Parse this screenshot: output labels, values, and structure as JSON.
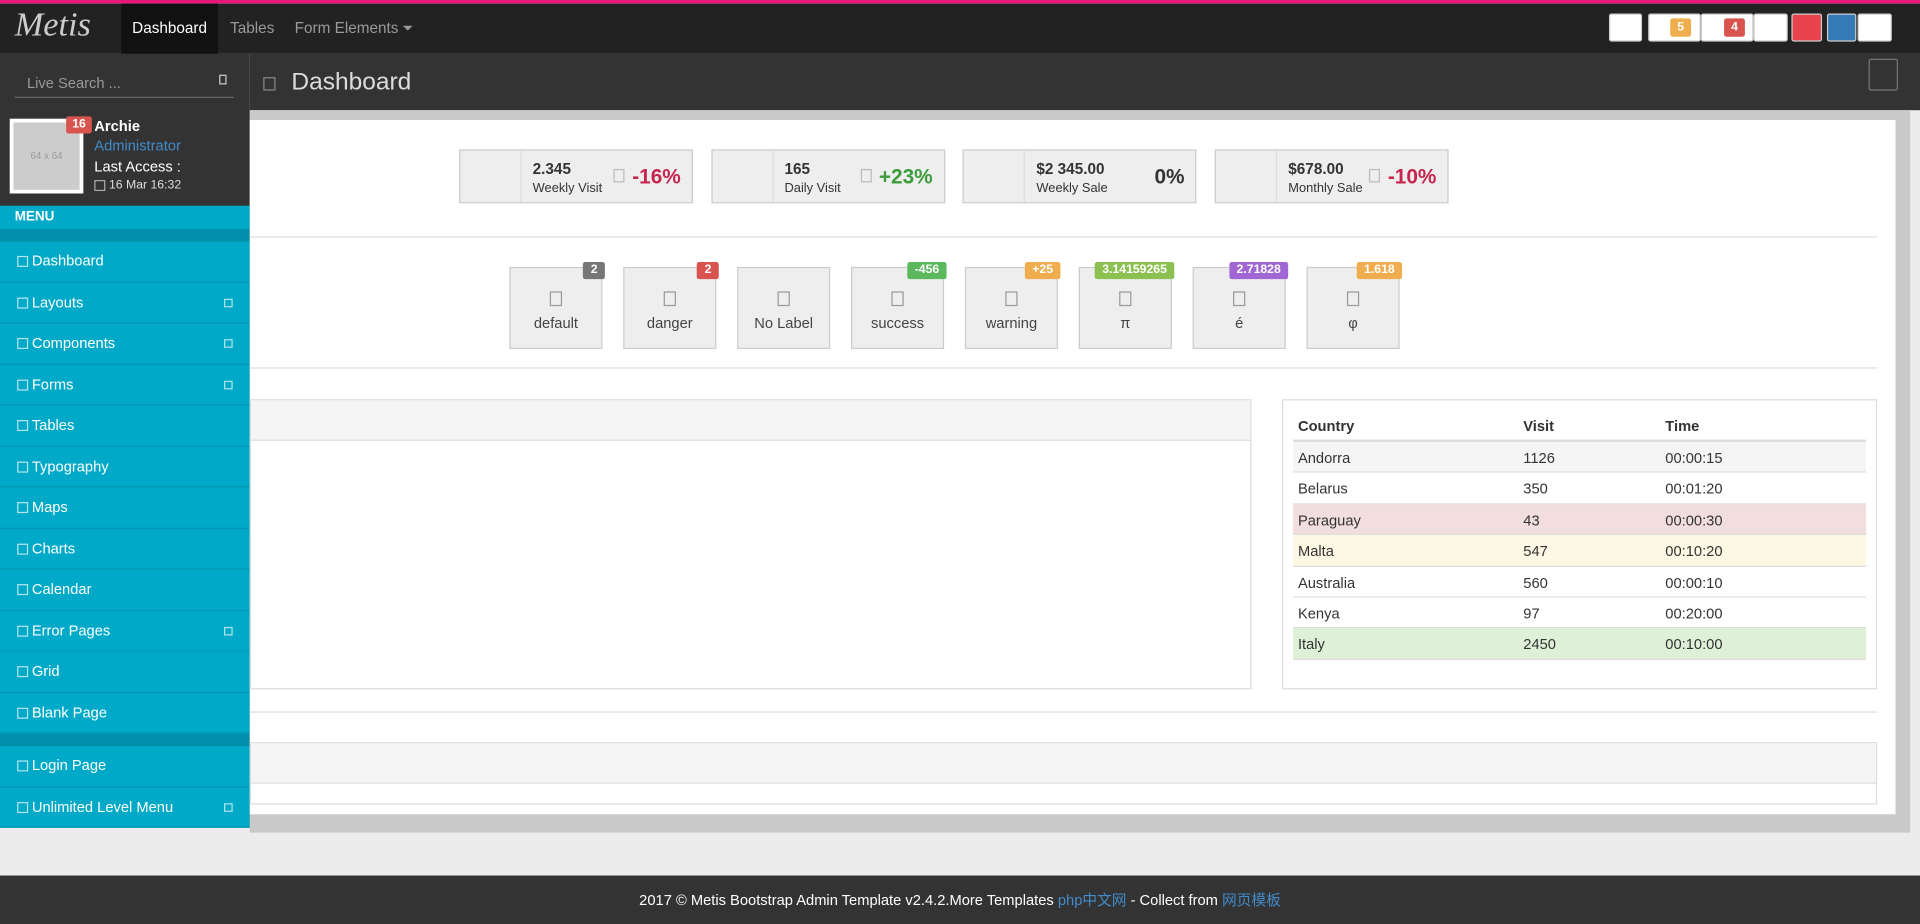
{
  "navbar": {
    "brand": "Metis",
    "links": [
      "Dashboard",
      "Tables",
      "Form Elements"
    ],
    "badges": [
      "5",
      "4"
    ]
  },
  "sidebar": {
    "search_placeholder": "Live Search ...",
    "user": {
      "avatar": "64 x 64",
      "badge": "16",
      "name": "Archie",
      "role": "Administrator",
      "last_access_label": "Last Access :",
      "last_access": "16 Mar 16:32"
    },
    "menu_header": "MENU",
    "menu": [
      {
        "label": "Dashboard",
        "submenu": false
      },
      {
        "label": "Layouts",
        "submenu": true
      },
      {
        "label": "Components",
        "submenu": true
      },
      {
        "label": "Forms",
        "submenu": true
      },
      {
        "label": "Tables",
        "submenu": false
      },
      {
        "label": "Typography",
        "submenu": false
      },
      {
        "label": "Maps",
        "submenu": false
      },
      {
        "label": "Charts",
        "submenu": false
      },
      {
        "label": "Calendar",
        "submenu": false
      },
      {
        "label": "Error Pages",
        "submenu": true
      },
      {
        "label": "Grid",
        "submenu": false
      },
      {
        "label": "Blank Page",
        "submenu": false
      }
    ],
    "menu_extra": [
      {
        "label": "Login Page",
        "submenu": false
      },
      {
        "label": "Unlimited Level Menu",
        "submenu": true
      }
    ]
  },
  "header": {
    "title": "Dashboard"
  },
  "stats": [
    {
      "value": "2.345",
      "label": "Weekly Visit",
      "change": "-16%"
    },
    {
      "value": "165",
      "label": "Daily Visit",
      "change": "+23%"
    },
    {
      "value": "$2 345.00",
      "label": "Weekly Sale",
      "change": "0%"
    },
    {
      "value": "$678.00",
      "label": "Monthly Sale",
      "change": "-10%"
    }
  ],
  "quick_buttons": [
    {
      "label": "default",
      "badge": "2",
      "color": "#777777"
    },
    {
      "label": "danger",
      "badge": "2",
      "color": "#d9534f"
    },
    {
      "label": "No Label"
    },
    {
      "label": "success",
      "badge": "-456",
      "color": "#5cb85c"
    },
    {
      "label": "warning",
      "badge": "+25",
      "color": "#f0ad4e"
    },
    {
      "label": "π",
      "badge": "3.14159265",
      "color": "#8cc152"
    },
    {
      "label": "é",
      "badge": "2.71828",
      "color": "#a066d3"
    },
    {
      "label": "φ",
      "badge": "1.618",
      "color": "#f0ad4e"
    }
  ],
  "table": {
    "columns": [
      "Country",
      "Visit",
      "Time"
    ],
    "rows": [
      [
        "Andorra",
        "1126",
        "00:00:15"
      ],
      [
        "Belarus",
        "350",
        "00:01:20"
      ],
      [
        "Paraguay",
        "43",
        "00:00:30"
      ],
      [
        "Malta",
        "547",
        "00:10:20"
      ],
      [
        "Australia",
        "560",
        "00:00:10"
      ],
      [
        "Kenya",
        "97",
        "00:20:00"
      ],
      [
        "Italy",
        "2450",
        "00:10:00"
      ]
    ],
    "row_colors": [
      "#f5f5f5",
      "#ffffff",
      "#f2dede",
      "#fcf8e3",
      "#ffffff",
      "#ffffff",
      "#dff0d8"
    ]
  },
  "footer": {
    "text": "2017 © Metis Bootstrap Admin Template v2.4.2.More Templates",
    "link1": "php中文网",
    "middle": "- Collect from",
    "link2": "网页模板"
  }
}
